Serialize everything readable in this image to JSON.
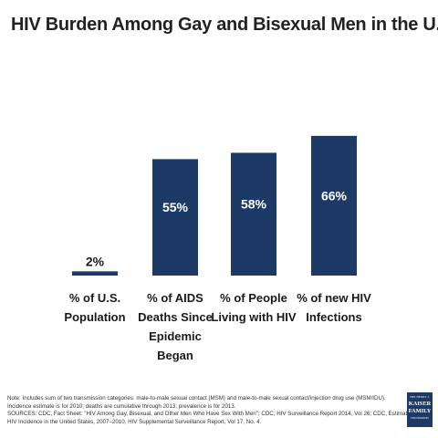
{
  "title": "HIV Burden Among Gay and Bisexual Men in the U.S.",
  "chart_data": {
    "type": "bar",
    "categories": [
      [
        "% of U.S.",
        "Population"
      ],
      [
        "% of AIDS",
        "Deaths Since",
        "Epidemic",
        "Began"
      ],
      [
        "% of People",
        "Living with HIV"
      ],
      [
        "% of new HIV",
        "Infections"
      ]
    ],
    "values": [
      2,
      55,
      58,
      66
    ],
    "value_labels": [
      "2%",
      "55%",
      "58%",
      "66%"
    ],
    "ylim": [
      0,
      100
    ],
    "grid": false,
    "legend": "none",
    "bar_color": "#1d3a66",
    "label_color_inside": "#ffffff",
    "label_color_outside": "#1a1a1a"
  },
  "footer": {
    "lines": [
      "Note:  Includes sum of two transmission categories: male-to-male sexual contact (MSM) and male-to-male sexual contact/injection drug use (MSM/IDU).",
      "Incidence estimate is for 2010; deaths are cumulative through 2013; prevalence is for 2013.",
      "SOURCES: CDC, Fact Sheet: \"HIV Among Gay, Bisexual, and Other Men Who Have Sex With Men\"; CDC, HIV Surveillance Report 2014, Vol 26; CDC, Estimated",
      "HIV Incidence in the United States, 2007–2010, HIV Supplemental Surveillance Report, Vol 17, No. 4."
    ]
  },
  "logo": {
    "line1": "THE HENRY J.",
    "line2": "KAISER",
    "line3": "FAMILY",
    "line4": "FOUNDATION"
  }
}
